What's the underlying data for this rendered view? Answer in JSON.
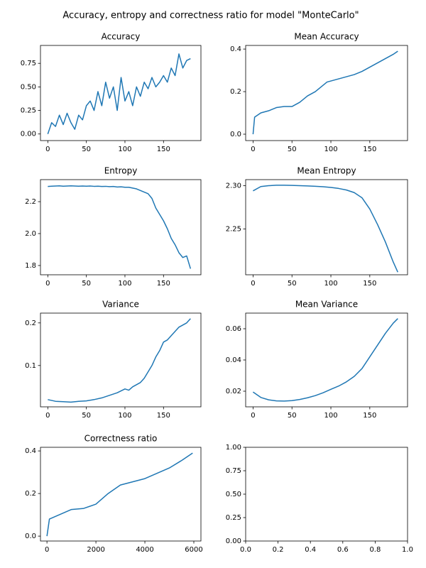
{
  "suptitle": "Accuracy, entropy and correctness ratio for model \"MonteCarlo\"",
  "chart_data": [
    {
      "type": "line",
      "title": "Accuracy",
      "color": "#1f77b4",
      "x": [
        0,
        5,
        10,
        15,
        20,
        25,
        30,
        35,
        40,
        45,
        50,
        55,
        60,
        65,
        70,
        75,
        80,
        85,
        90,
        95,
        100,
        105,
        110,
        115,
        120,
        125,
        130,
        135,
        140,
        145,
        150,
        155,
        160,
        165,
        170,
        175,
        180,
        185
      ],
      "values": [
        0.0,
        0.12,
        0.08,
        0.2,
        0.1,
        0.22,
        0.12,
        0.05,
        0.2,
        0.15,
        0.3,
        0.35,
        0.25,
        0.45,
        0.3,
        0.55,
        0.38,
        0.5,
        0.25,
        0.6,
        0.35,
        0.45,
        0.3,
        0.5,
        0.4,
        0.55,
        0.48,
        0.6,
        0.5,
        0.55,
        0.62,
        0.55,
        0.7,
        0.62,
        0.85,
        0.7,
        0.78,
        0.8
      ],
      "xlim": [
        -9.5,
        198.5
      ],
      "ylim": [
        -0.07,
        0.94
      ],
      "xticks": [
        0,
        50,
        100,
        150
      ],
      "yticks": [
        {
          "value": 0,
          "label": "0.00"
        },
        {
          "value": 0.25,
          "label": "0.25"
        },
        {
          "value": 0.5,
          "label": "0.50"
        },
        {
          "value": 0.75,
          "label": "0.75"
        }
      ]
    },
    {
      "type": "line",
      "title": "Mean Accuracy",
      "color": "#1f77b4",
      "x": [
        0,
        2,
        10,
        20,
        30,
        40,
        50,
        60,
        70,
        80,
        90,
        95,
        100,
        110,
        120,
        130,
        140,
        150,
        160,
        170,
        180,
        186
      ],
      "values": [
        0,
        0.08,
        0.1,
        0.11,
        0.125,
        0.13,
        0.13,
        0.15,
        0.18,
        0.2,
        0.23,
        0.245,
        0.25,
        0.26,
        0.27,
        0.28,
        0.295,
        0.315,
        0.335,
        0.355,
        0.375,
        0.39
      ],
      "xlim": [
        -9.5,
        198.5
      ],
      "ylim": [
        -0.03,
        0.417
      ],
      "xticks": [
        0,
        50,
        100,
        150
      ],
      "yticks": [
        {
          "value": 0,
          "label": "0.0"
        },
        0.2,
        0.4
      ]
    },
    {
      "type": "line",
      "title": "Entropy",
      "color": "#1f77b4",
      "x": [
        0,
        5,
        10,
        15,
        20,
        25,
        30,
        35,
        40,
        45,
        50,
        55,
        60,
        65,
        70,
        75,
        80,
        85,
        90,
        95,
        100,
        105,
        110,
        115,
        120,
        125,
        130,
        135,
        140,
        145,
        150,
        155,
        160,
        165,
        170,
        175,
        180,
        185
      ],
      "values": [
        2.295,
        2.297,
        2.298,
        2.299,
        2.297,
        2.298,
        2.299,
        2.298,
        2.297,
        2.298,
        2.297,
        2.298,
        2.296,
        2.297,
        2.295,
        2.296,
        2.294,
        2.295,
        2.292,
        2.293,
        2.29,
        2.29,
        2.285,
        2.28,
        2.27,
        2.26,
        2.25,
        2.22,
        2.16,
        2.12,
        2.08,
        2.03,
        1.97,
        1.93,
        1.88,
        1.85,
        1.86,
        1.78
      ],
      "xlim": [
        -9.5,
        198.5
      ],
      "ylim": [
        1.742,
        2.338
      ],
      "xticks": [
        0,
        50,
        100,
        150
      ],
      "yticks": [
        1.8,
        {
          "value": 2,
          "label": "2.0"
        },
        2.2
      ]
    },
    {
      "type": "line",
      "title": "Mean Entropy",
      "color": "#1f77b4",
      "x": [
        0,
        10,
        20,
        30,
        40,
        50,
        60,
        70,
        80,
        90,
        100,
        110,
        120,
        130,
        140,
        150,
        160,
        170,
        180,
        186
      ],
      "values": [
        2.294,
        2.299,
        2.3,
        2.3005,
        2.3005,
        2.3003,
        2.3,
        2.2997,
        2.2993,
        2.2988,
        2.298,
        2.2968,
        2.295,
        2.292,
        2.286,
        2.273,
        2.255,
        2.235,
        2.212,
        2.2
      ],
      "xlim": [
        -9.5,
        198.5
      ],
      "ylim": [
        2.197,
        2.307
      ],
      "xticks": [
        0,
        50,
        100,
        150
      ],
      "yticks": [
        2.25,
        {
          "value": 2.3,
          "label": "2.30"
        }
      ]
    },
    {
      "type": "line",
      "title": "Variance",
      "color": "#1f77b4",
      "x": [
        0,
        10,
        20,
        30,
        40,
        50,
        60,
        70,
        80,
        90,
        100,
        105,
        110,
        115,
        120,
        125,
        130,
        135,
        140,
        145,
        150,
        155,
        160,
        165,
        170,
        175,
        180,
        185
      ],
      "values": [
        0.02,
        0.016,
        0.015,
        0.014,
        0.016,
        0.017,
        0.02,
        0.024,
        0.03,
        0.036,
        0.045,
        0.042,
        0.05,
        0.055,
        0.06,
        0.07,
        0.085,
        0.1,
        0.12,
        0.135,
        0.155,
        0.16,
        0.17,
        0.18,
        0.19,
        0.195,
        0.2,
        0.21
      ],
      "xlim": [
        -9.5,
        198.5
      ],
      "ylim": [
        0.003,
        0.223
      ],
      "xticks": [
        0,
        50,
        100,
        150
      ],
      "yticks": [
        0.1,
        0.2
      ]
    },
    {
      "type": "line",
      "title": "Mean Variance",
      "color": "#1f77b4",
      "x": [
        0,
        10,
        20,
        30,
        40,
        50,
        60,
        70,
        80,
        90,
        100,
        110,
        120,
        130,
        140,
        150,
        160,
        170,
        180,
        186
      ],
      "values": [
        0.0195,
        0.016,
        0.0145,
        0.0138,
        0.0137,
        0.014,
        0.0147,
        0.0158,
        0.0172,
        0.019,
        0.0212,
        0.0233,
        0.026,
        0.0295,
        0.0345,
        0.042,
        0.0495,
        0.057,
        0.0635,
        0.0665
      ],
      "xlim": [
        -9.5,
        198.5
      ],
      "ylim": [
        0.01,
        0.07
      ],
      "xticks": [
        0,
        50,
        100,
        150
      ],
      "yticks": [
        {
          "value": 0.02,
          "label": "0.02"
        },
        {
          "value": 0.04,
          "label": "0.04"
        },
        0.06
      ]
    },
    {
      "type": "line",
      "title": "Correctness ratio",
      "color": "#1f77b4",
      "x": [
        0,
        100,
        300,
        500,
        1000,
        1500,
        2000,
        2500,
        3000,
        3500,
        4000,
        4500,
        5000,
        5500,
        5950
      ],
      "values": [
        0,
        0.08,
        0.09,
        0.1,
        0.125,
        0.13,
        0.15,
        0.2,
        0.24,
        0.255,
        0.27,
        0.295,
        0.32,
        0.355,
        0.39
      ],
      "xlim": [
        -265,
        6290
      ],
      "ylim": [
        -0.023,
        0.417
      ],
      "xticks": [
        0,
        2000,
        4000,
        6000
      ],
      "yticks": [
        {
          "value": 0,
          "label": "0.0"
        },
        0.2,
        0.4
      ]
    },
    {
      "type": "line",
      "xlim": [
        0,
        1
      ],
      "ylim": [
        0,
        1
      ],
      "xticks": [
        {
          "value": 0,
          "label": "0.0"
        },
        0.2,
        0.4,
        0.6,
        0.8,
        {
          "value": 1,
          "label": "1.0"
        }
      ],
      "yticks": [
        {
          "value": 0,
          "label": "0.00"
        },
        0.25,
        {
          "value": 0.5,
          "label": "0.50"
        },
        0.75,
        {
          "value": 1,
          "label": "1.00"
        }
      ]
    }
  ]
}
